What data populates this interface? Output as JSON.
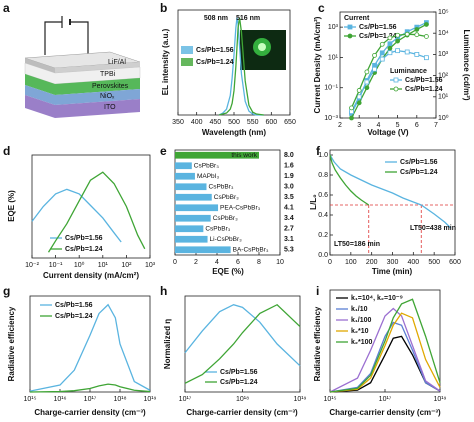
{
  "device": {
    "panel": "a",
    "layers": [
      "LiF/Al",
      "TPBi",
      "Perovskites",
      "NiOₓ",
      "ITO"
    ]
  },
  "chart_data": [
    {
      "type": "line",
      "panel": "b",
      "xlabel": "Wavelength (nm)",
      "ylabel": "EL intensity (a.u.)",
      "xlim": [
        350,
        650
      ],
      "xticks": [
        350,
        400,
        450,
        500,
        550,
        600,
        650
      ],
      "ylim": [
        0,
        1.08
      ],
      "x": [
        460,
        470,
        480,
        490,
        495,
        500,
        505,
        508,
        511,
        515,
        520,
        530,
        540,
        550,
        560,
        580
      ],
      "series": [
        {
          "name": "Cs/Pb=1.56",
          "color": "#5ab4e0",
          "values": [
            0,
            0.02,
            0.06,
            0.2,
            0.38,
            0.62,
            0.9,
            1.0,
            0.93,
            0.7,
            0.42,
            0.14,
            0.04,
            0.01,
            0,
            0
          ]
        },
        {
          "name": "Cs/Pb=1.24",
          "color": "#3fa535",
          "values": [
            0,
            0.01,
            0.02,
            0.06,
            0.12,
            0.25,
            0.5,
            0.7,
            0.9,
            1.0,
            0.85,
            0.35,
            0.1,
            0.03,
            0.01,
            0
          ]
        }
      ],
      "annotations": [
        "508 nm",
        "516 nm"
      ]
    },
    {
      "type": "line",
      "panel": "c",
      "xlabel": "Voltage (V)",
      "ylabel": "Current Density (mA/cm²)",
      "y2label": "Luminance (cd/m²)",
      "xlim": [
        2,
        7
      ],
      "xticks": [
        2,
        3,
        4,
        5,
        6,
        7
      ],
      "yscale": "log",
      "ylim": [
        0.001,
        10000
      ],
      "yticks": [
        {
          "value": 0.001,
          "label": "10⁻³"
        },
        {
          "value": 0.1,
          "label": "10⁻¹"
        },
        {
          "value": 10,
          "label": "10¹"
        },
        {
          "value": 1000,
          "label": "10³"
        }
      ],
      "y2scale": "log",
      "y2lim": [
        1,
        100000
      ],
      "y2ticks": [
        {
          "value": 1,
          "label": "10⁰"
        },
        {
          "value": 10,
          "label": "10¹"
        },
        {
          "value": 100,
          "label": "10²"
        },
        {
          "value": 1000,
          "label": "10³"
        },
        {
          "value": 10000,
          "label": "10⁴"
        },
        {
          "value": 100000,
          "label": "10⁵"
        }
      ],
      "x": [
        2.6,
        3,
        3.4,
        3.8,
        4.2,
        4.6,
        5,
        5.5,
        6,
        6.5
      ],
      "series": [
        {
          "name": "Cs/Pb=1.56",
          "color": "#5ab4e0",
          "marker": "square",
          "filled": true,
          "values": [
            0.002,
            0.02,
            0.3,
            3,
            20,
            80,
            200,
            500,
            1000,
            2000
          ]
        },
        {
          "name": "Cs/Pb=1.24",
          "color": "#3fa535",
          "marker": "circle",
          "filled": true,
          "values": [
            0.001,
            0.01,
            0.1,
            1,
            8,
            40,
            120,
            300,
            700,
            1500
          ]
        },
        {
          "name": "Cs/Pb=1.56",
          "color": "#5ab4e0",
          "marker": "square",
          "filled": false,
          "axis": "y2",
          "values": [
            2,
            10,
            50,
            200,
            600,
            1200,
            1500,
            1300,
            1000,
            700
          ]
        },
        {
          "name": "Cs/Pb=1.24",
          "color": "#3fa535",
          "marker": "circle",
          "filled": false,
          "axis": "y2",
          "values": [
            3,
            20,
            150,
            900,
            3000,
            6000,
            8000,
            9000,
            8500,
            7000
          ]
        }
      ],
      "annotations": [
        "Current",
        "Luminance"
      ]
    },
    {
      "type": "line",
      "panel": "d",
      "xlabel": "Current density (mA/cm²)",
      "ylabel": "EQE (%)",
      "xscale": "log",
      "xlim": [
        0.01,
        1000
      ],
      "xticks": [
        {
          "value": 0.01,
          "label": "10⁻²"
        },
        {
          "value": 0.1,
          "label": "10⁻¹"
        },
        {
          "value": 1,
          "label": "10⁰"
        },
        {
          "value": 10,
          "label": "10¹"
        },
        {
          "value": 100,
          "label": "10²"
        },
        {
          "value": 1000,
          "label": "10³"
        }
      ],
      "ylim": [
        0,
        9
      ],
      "series": [
        {
          "name": "Cs/Pb=1.56",
          "color": "#5ab4e0",
          "x": [
            0.01,
            0.03,
            0.1,
            0.3,
            1,
            3,
            10,
            30,
            60
          ],
          "values": [
            3.2,
            4.5,
            5.6,
            6,
            5.6,
            4.6,
            3.5,
            2.2,
            1.4
          ]
        },
        {
          "name": "Cs/Pb=1.24",
          "color": "#3fa535",
          "x": [
            0.05,
            0.1,
            0.3,
            1,
            3,
            10,
            30,
            100,
            300,
            600
          ],
          "values": [
            0.5,
            1.5,
            3,
            5,
            6.8,
            7.5,
            6.5,
            4.5,
            2,
            0.8
          ]
        }
      ]
    },
    {
      "type": "bar",
      "panel": "e",
      "xlabel": "EQE (%)",
      "xlim": [
        0,
        10
      ],
      "xticks": [
        0,
        2,
        4,
        6,
        8,
        10
      ],
      "categories": [
        "this work",
        "CsPbBr₃",
        "MAPbI₃",
        "CsPbBr₃",
        "CsPbBr₃",
        "PEA-CsPbBr₃",
        "CsPbBr₃",
        "CsPbBr₃",
        "Li-CsPbBr₃",
        "BA-CsPbBr₃"
      ],
      "values": [
        8,
        1.6,
        1.9,
        3,
        3.5,
        4.1,
        3.4,
        2.7,
        3.1,
        5.3
      ],
      "value_labels": [
        "8.0",
        "1.6",
        "1.9",
        "3.0",
        "3.5",
        "4.1",
        "3.4",
        "2.7",
        "3.1",
        "5.3"
      ],
      "colors": [
        "#3fa535",
        "#5ab4e0",
        "#5ab4e0",
        "#5ab4e0",
        "#5ab4e0",
        "#5ab4e0",
        "#5ab4e0",
        "#5ab4e0",
        "#5ab4e0",
        "#5ab4e0"
      ]
    },
    {
      "type": "line",
      "panel": "f",
      "xlabel": "Time (min)",
      "ylabel": "L/L₀",
      "xlim": [
        0,
        600
      ],
      "xticks": [
        0,
        100,
        200,
        300,
        400,
        500,
        600
      ],
      "ylim": [
        0,
        1.05
      ],
      "yticks": [
        {
          "value": 0,
          "label": "0.0"
        },
        0.2,
        0.4,
        0.6,
        0.8,
        {
          "value": 1,
          "label": "1.0"
        }
      ],
      "series": [
        {
          "name": "Cs/Pb=1.56",
          "color": "#5ab4e0",
          "x": [
            0,
            20,
            50,
            100,
            150,
            200,
            250,
            300,
            350,
            400,
            438,
            500,
            550,
            580
          ],
          "values": [
            1,
            0.93,
            0.86,
            0.8,
            0.75,
            0.7,
            0.66,
            0.62,
            0.57,
            0.53,
            0.5,
            0.41,
            0.33,
            0.27
          ]
        },
        {
          "name": "Cs/Pb=1.24",
          "color": "#3fa535",
          "x": [
            0,
            10,
            25,
            50,
            75,
            100,
            125,
            150,
            186
          ],
          "values": [
            1,
            0.92,
            0.85,
            0.77,
            0.7,
            0.64,
            0.59,
            0.55,
            0.5
          ]
        }
      ],
      "hlines": [
        0.5
      ],
      "vlines": [
        186,
        438
      ],
      "annotations": [
        "LT50=438 min",
        "LT50=186 min"
      ]
    },
    {
      "type": "line",
      "panel": "g",
      "xlabel": "Charge-carrier density (cm⁻³)",
      "ylabel": "Radiative efficiency",
      "xscale": "log",
      "xlim": [
        1000000000000000.0,
        1e+19
      ],
      "xticks": [
        {
          "value": 1000000000000000.0,
          "label": "10¹⁵"
        },
        {
          "value": 1e+16,
          "label": "10¹⁶"
        },
        {
          "value": 1e+17,
          "label": "10¹⁷"
        },
        {
          "value": 1e+18,
          "label": "10¹⁸"
        },
        {
          "value": 1e+19,
          "label": "10¹⁹"
        }
      ],
      "ylim": [
        0,
        1.1
      ],
      "x": [
        1000000000000000.0,
        1e+16,
        3e+16,
        1e+17,
        2e+17,
        4e+17,
        7e+17,
        1e+18,
        3e+18,
        1e+19
      ],
      "series": [
        {
          "name": "Cs/Pb=1.56",
          "color": "#5ab4e0",
          "values": [
            0.01,
            0.08,
            0.25,
            0.65,
            0.9,
            1.0,
            0.85,
            0.55,
            0.12,
            0.02
          ]
        },
        {
          "name": "Cs/Pb=1.24",
          "color": "#3fa535",
          "values": [
            0,
            0.005,
            0.015,
            0.04,
            0.07,
            0.09,
            0.08,
            0.06,
            0.02,
            0.005
          ]
        }
      ]
    },
    {
      "type": "line",
      "panel": "h",
      "xlabel": "Charge-carrier density (cm⁻³)",
      "ylabel": "Normalized η",
      "xscale": "log",
      "xlim": [
        1e+17,
        1e+19
      ],
      "xticks": [
        {
          "value": 1e+17,
          "label": "10¹⁷"
        },
        {
          "value": 1e+18,
          "label": "10¹⁸"
        },
        {
          "value": 1e+19,
          "label": "10¹⁹"
        }
      ],
      "ylim": [
        0,
        1.1
      ],
      "x": [
        1e+17,
        2e+17,
        4e+17,
        7e+17,
        1e+18,
        2e+18,
        4e+18,
        1e+19
      ],
      "series": [
        {
          "name": "Cs/Pb=1.56",
          "color": "#5ab4e0",
          "values": [
            0.45,
            0.7,
            0.92,
            1.0,
            0.97,
            0.8,
            0.55,
            0.3
          ]
        },
        {
          "name": "Cs/Pb=1.24",
          "color": "#3fa535",
          "values": [
            0.1,
            0.2,
            0.38,
            0.55,
            0.68,
            0.9,
            1.0,
            0.75
          ]
        }
      ]
    },
    {
      "type": "line",
      "panel": "i",
      "xlabel": "Charge-carrier density (cm⁻³)",
      "ylabel": "Radiative efficiency",
      "xscale": "log",
      "xlim": [
        1000000000000000.0,
        1e+19
      ],
      "xticks": [
        {
          "value": 1000000000000000.0,
          "label": "10¹⁵"
        },
        {
          "value": 1e+17,
          "label": "10¹⁷"
        },
        {
          "value": 1e+19,
          "label": "10¹⁹"
        }
      ],
      "ylim": [
        0,
        1.1
      ],
      "x": [
        1000000000000000.0,
        1e+16,
        3e+16,
        1e+17,
        2e+17,
        4e+17,
        1e+18,
        3e+18,
        1e+19
      ],
      "series": [
        {
          "name": "k₁=10⁴, k₂=10⁻⁹",
          "color": "#000000",
          "values": [
            0,
            0.02,
            0.1,
            0.4,
            0.58,
            0.6,
            0.4,
            0.1,
            0.01
          ]
        },
        {
          "name": "k₁/10",
          "color": "#5b7fd4",
          "values": [
            0,
            0.05,
            0.2,
            0.6,
            0.75,
            0.72,
            0.45,
            0.1,
            0.01
          ]
        },
        {
          "name": "k₁/100",
          "color": "#9b6fd1",
          "values": [
            0,
            0.15,
            0.45,
            0.82,
            0.9,
            0.82,
            0.5,
            0.12,
            0.01
          ]
        },
        {
          "name": "k₂*10",
          "color": "#e0a800",
          "values": [
            0,
            0.03,
            0.15,
            0.5,
            0.72,
            0.85,
            0.8,
            0.35,
            0.05
          ]
        },
        {
          "name": "k₂*100",
          "color": "#3fa535",
          "values": [
            0,
            0.04,
            0.18,
            0.55,
            0.8,
            0.95,
            1.0,
            0.6,
            0.1
          ]
        }
      ]
    }
  ]
}
